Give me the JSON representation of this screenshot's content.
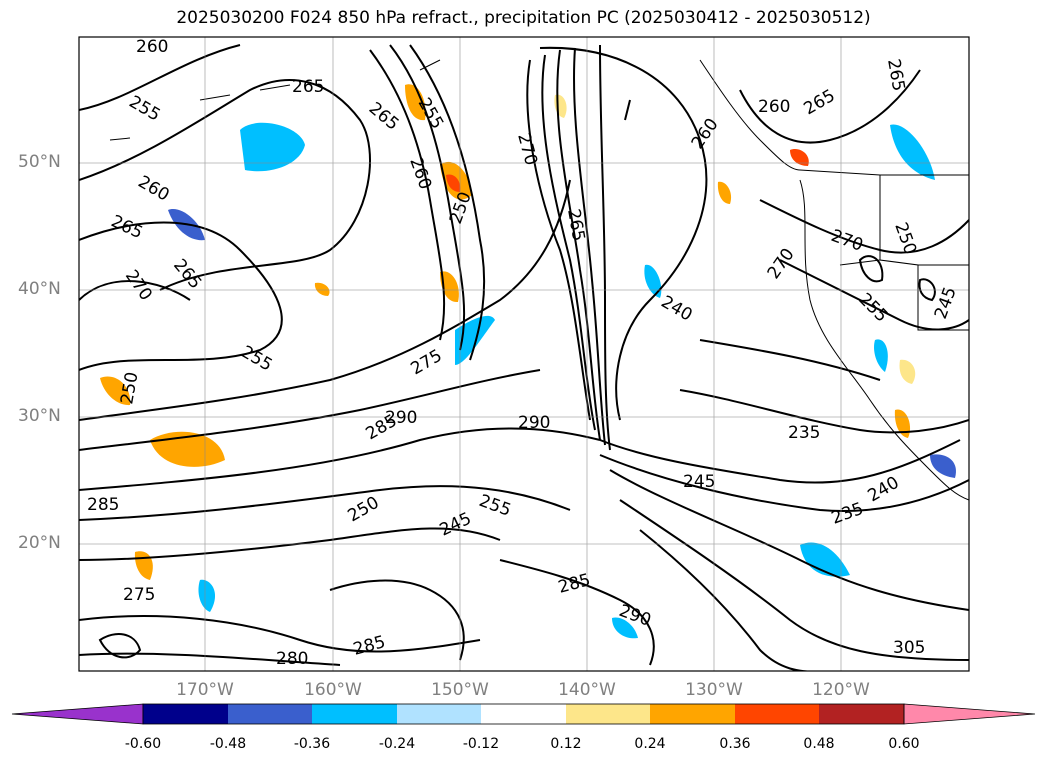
{
  "title": "2025030200 F024 850 hPa refract., precipitation PC (2025030412 - 2025030512)",
  "lat_labels": [
    "50°N",
    "40°N",
    "30°N",
    "20°N"
  ],
  "lon_labels": [
    "170°W",
    "160°W",
    "150°W",
    "140°W",
    "130°W",
    "120°W"
  ],
  "contour_labels": [
    "260",
    "265",
    "255",
    "255",
    "265",
    "260",
    "250",
    "270",
    "265",
    "260",
    "265",
    "265",
    "260",
    "260",
    "265",
    "270",
    "265",
    "255",
    "250",
    "275",
    "290",
    "285",
    "290",
    "235",
    "245",
    "240",
    "235",
    "285",
    "250",
    "255",
    "245",
    "285",
    "290",
    "285",
    "280",
    "275",
    "270",
    "305",
    "270",
    "250",
    "240",
    "255",
    "245"
  ],
  "colorbar": {
    "ticks": [
      "-0.60",
      "-0.48",
      "-0.36",
      "-0.24",
      "-0.12",
      "0.12",
      "0.24",
      "0.36",
      "0.48",
      "0.60"
    ],
    "colors": [
      "#9932cc",
      "#00008b",
      "#3a5fcd",
      "#00bfff",
      "#b0e2ff",
      "#ffffff",
      "#fde68a",
      "#ffa500",
      "#ff4500",
      "#b22222",
      "#ff88aa"
    ]
  }
}
